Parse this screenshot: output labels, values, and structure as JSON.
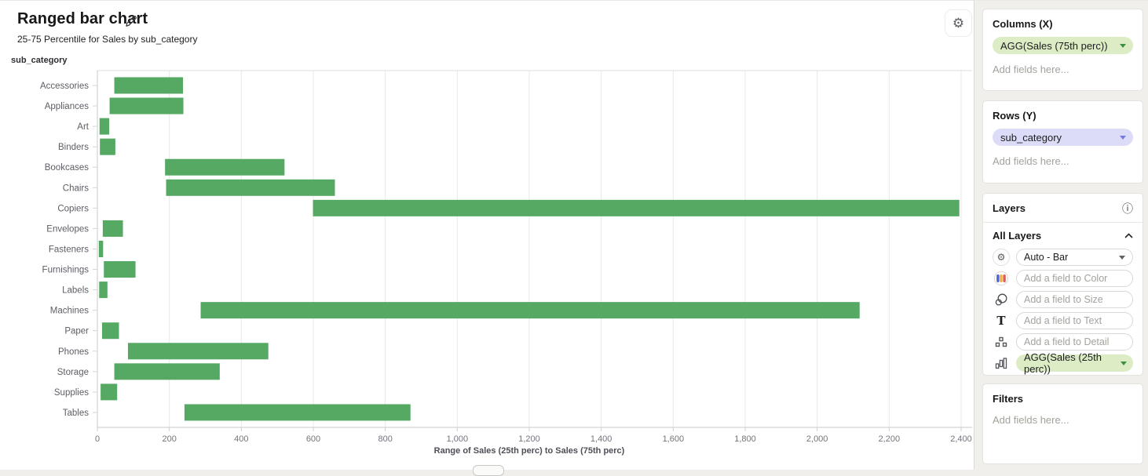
{
  "header": {
    "title": "Ranged bar chart",
    "subtitle": "25-75 Percentile for Sales by sub_category"
  },
  "sidebar": {
    "columns": {
      "header": "Columns (X)",
      "pill": "AGG(Sales (75th perc))",
      "placeholder": "Add fields here..."
    },
    "rows": {
      "header": "Rows (Y)",
      "pill": "sub_category",
      "placeholder": "Add fields here..."
    },
    "layers": {
      "header": "Layers",
      "all_layers_label": "All Layers",
      "mark_type": "Auto - Bar",
      "fields": [
        {
          "icon": "color-icon",
          "placeholder": "Add a field to Color"
        },
        {
          "icon": "size-icon",
          "placeholder": "Add a field to Size"
        },
        {
          "icon": "text-icon",
          "placeholder": "Add a field to Text"
        },
        {
          "icon": "detail-icon",
          "placeholder": "Add a field to Detail"
        }
      ],
      "measure_pill": "AGG(Sales (25th perc))"
    },
    "filters": {
      "header": "Filters",
      "placeholder": "Add fields here..."
    }
  },
  "chart_data": {
    "type": "bar",
    "subtype": "ranged-horizontal",
    "title": "Ranged bar chart",
    "subtitle": "25-75 Percentile for Sales by sub_category",
    "xlabel": "Range of Sales (25th perc) to Sales (75th perc)",
    "ylabel": "sub_category",
    "xlim": [
      0,
      2400
    ],
    "grid": true,
    "bar_color": "#55a963",
    "categories": [
      "Accessories",
      "Appliances",
      "Art",
      "Binders",
      "Bookcases",
      "Chairs",
      "Copiers",
      "Envelopes",
      "Fasteners",
      "Furnishings",
      "Labels",
      "Machines",
      "Paper",
      "Phones",
      "Storage",
      "Supplies",
      "Tables"
    ],
    "series": [
      {
        "name": "Sales (25th perc)",
        "values": [
          47,
          34,
          6,
          7,
          188,
          191,
          599,
          15,
          4,
          18,
          5,
          287,
          13,
          85,
          47,
          9,
          242
        ]
      },
      {
        "name": "Sales (75th perc)",
        "values": [
          238,
          239,
          33,
          50,
          520,
          660,
          2395,
          71,
          16,
          106,
          28,
          2118,
          60,
          475,
          340,
          55,
          870
        ]
      }
    ],
    "x_tick_values": [
      0,
      200,
      400,
      600,
      800,
      1000,
      1200,
      1400,
      1600,
      1800,
      2000,
      2200,
      2400
    ],
    "x_tick_labels": [
      "0",
      "200",
      "400",
      "600",
      "800",
      "1,000",
      "1,200",
      "1,400",
      "1,600",
      "1,800",
      "2,000",
      "2,200",
      "2,400"
    ]
  }
}
